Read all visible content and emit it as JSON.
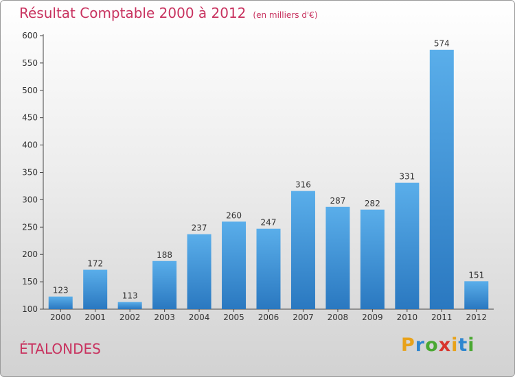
{
  "title": "Résultat Comptable 2000 à 2012",
  "subtitle": "(en milliers d'€)",
  "city": "ÉTALONDES",
  "logo": {
    "letters": [
      "P",
      "r",
      "o",
      "x",
      "i",
      "t",
      "i"
    ],
    "colors": [
      "#e8a21a",
      "#2f86cf",
      "#4aa832",
      "#d8342c",
      "#e8a21a",
      "#2f86cf",
      "#4aa832"
    ]
  },
  "bar_color_top": "#5aaeea",
  "bar_color_bottom": "#2a78c0",
  "chart_data": {
    "type": "bar",
    "title": "Résultat Comptable 2000 à 2012",
    "subtitle": "(en milliers d'€)",
    "categories": [
      "2000",
      "2001",
      "2002",
      "2003",
      "2004",
      "2005",
      "2006",
      "2007",
      "2008",
      "2009",
      "2010",
      "2011",
      "2012"
    ],
    "values": [
      123,
      172,
      113,
      188,
      237,
      260,
      247,
      316,
      287,
      282,
      331,
      574,
      151
    ],
    "ylim": [
      100,
      600
    ],
    "yticks": [
      100,
      150,
      200,
      250,
      300,
      350,
      400,
      450,
      500,
      550,
      600
    ],
    "grid": false,
    "xlabel": "",
    "ylabel": ""
  }
}
